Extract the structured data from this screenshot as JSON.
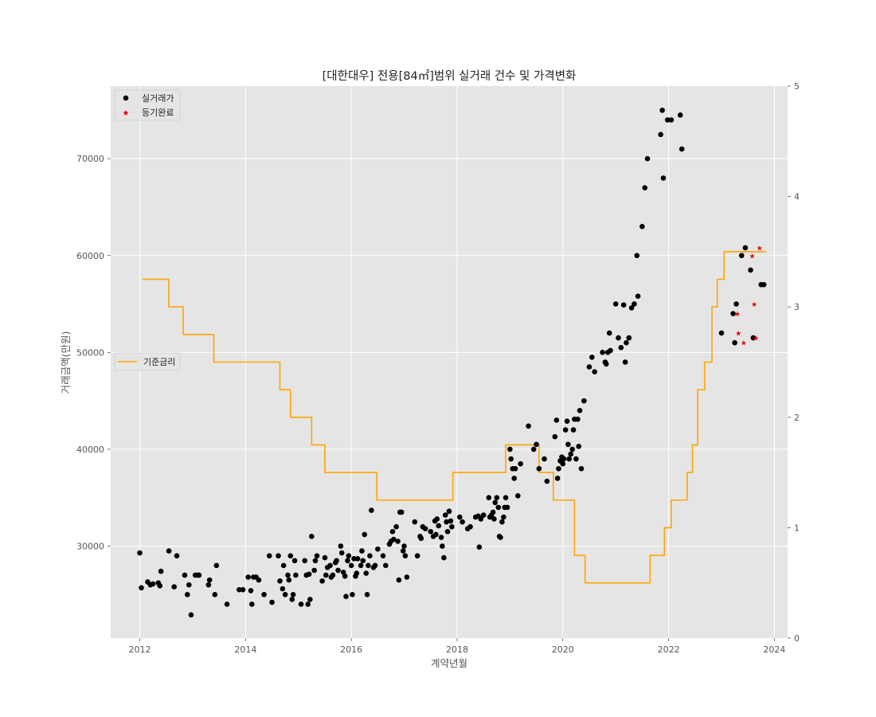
{
  "chart_data": {
    "type": "scatter",
    "title": "[대한대우] 전용[84㎡]범위 실거래 건수 및 가격변화",
    "xlabel": "계약년월",
    "ylabel": "거래금액(만원)",
    "xlim": [
      2011.45,
      2024.25
    ],
    "ylim": [
      20500,
      77500
    ],
    "y2lim": [
      0,
      5
    ],
    "x_ticks": [
      2012,
      2014,
      2016,
      2018,
      2020,
      2022,
      2024
    ],
    "x_tick_labels": [
      "2012",
      "2014",
      "2016",
      "2018",
      "2020",
      "2022",
      "2024"
    ],
    "y_ticks": [
      30000,
      40000,
      50000,
      60000,
      70000
    ],
    "y_tick_labels": [
      "30000",
      "40000",
      "50000",
      "60000",
      "70000"
    ],
    "y2_ticks": [
      0,
      1,
      2,
      3,
      4,
      5
    ],
    "y2_tick_labels": [
      "0",
      "1",
      "2",
      "3",
      "4",
      "5"
    ],
    "grid": true,
    "legend_top": {
      "placement": "upper-left",
      "entries": [
        "실거래가",
        "등기완료"
      ]
    },
    "legend_mid": {
      "placement": "center-left",
      "entries": [
        "기준금리"
      ]
    },
    "colors": {
      "plot_bg": "#e5e5e5",
      "grid": "#ffffff",
      "trade": "#000000",
      "registered": "#e00000",
      "rate": "#ffa500"
    },
    "series": [
      {
        "name": "실거래가",
        "kind": "scatter",
        "color": "#000000",
        "points": [
          [
            2012.0,
            29300
          ],
          [
            2012.03,
            25700
          ],
          [
            2012.15,
            26300
          ],
          [
            2012.2,
            26000
          ],
          [
            2012.25,
            26100
          ],
          [
            2012.35,
            26200
          ],
          [
            2012.38,
            25900
          ],
          [
            2012.4,
            27400
          ],
          [
            2012.55,
            29500
          ],
          [
            2012.65,
            25800
          ],
          [
            2012.7,
            29000
          ],
          [
            2012.85,
            27000
          ],
          [
            2012.9,
            25000
          ],
          [
            2012.93,
            26000
          ],
          [
            2012.97,
            22900
          ],
          [
            2013.05,
            27000
          ],
          [
            2013.1,
            27000
          ],
          [
            2013.12,
            27000
          ],
          [
            2013.3,
            26000
          ],
          [
            2013.32,
            26500
          ],
          [
            2013.42,
            25000
          ],
          [
            2013.45,
            28000
          ],
          [
            2013.65,
            24000
          ],
          [
            2013.88,
            25500
          ],
          [
            2013.95,
            25500
          ],
          [
            2014.05,
            26800
          ],
          [
            2014.1,
            25400
          ],
          [
            2014.12,
            24000
          ],
          [
            2014.15,
            26800
          ],
          [
            2014.2,
            26800
          ],
          [
            2014.25,
            26500
          ],
          [
            2014.35,
            25000
          ],
          [
            2014.45,
            29000
          ],
          [
            2014.5,
            24200
          ],
          [
            2014.62,
            29000
          ],
          [
            2014.65,
            26400
          ],
          [
            2014.7,
            25600
          ],
          [
            2014.72,
            28000
          ],
          [
            2014.75,
            25000
          ],
          [
            2014.8,
            27000
          ],
          [
            2014.82,
            26500
          ],
          [
            2014.85,
            29000
          ],
          [
            2014.88,
            24500
          ],
          [
            2014.9,
            25000
          ],
          [
            2014.93,
            28500
          ],
          [
            2014.95,
            27000
          ],
          [
            2015.05,
            24000
          ],
          [
            2015.12,
            28500
          ],
          [
            2015.15,
            27000
          ],
          [
            2015.18,
            24000
          ],
          [
            2015.2,
            27100
          ],
          [
            2015.22,
            24500
          ],
          [
            2015.25,
            31000
          ],
          [
            2015.3,
            27500
          ],
          [
            2015.32,
            28500
          ],
          [
            2015.35,
            29000
          ],
          [
            2015.45,
            26400
          ],
          [
            2015.5,
            28800
          ],
          [
            2015.52,
            27000
          ],
          [
            2015.55,
            27800
          ],
          [
            2015.6,
            28000
          ],
          [
            2015.62,
            26800
          ],
          [
            2015.65,
            27000
          ],
          [
            2015.7,
            28300
          ],
          [
            2015.72,
            28500
          ],
          [
            2015.75,
            27500
          ],
          [
            2015.8,
            30000
          ],
          [
            2015.82,
            29300
          ],
          [
            2015.85,
            27300
          ],
          [
            2015.88,
            26900
          ],
          [
            2015.9,
            24800
          ],
          [
            2015.93,
            28500
          ],
          [
            2015.95,
            29000
          ],
          [
            2016.0,
            28000
          ],
          [
            2016.02,
            25000
          ],
          [
            2016.05,
            28700
          ],
          [
            2016.08,
            26900
          ],
          [
            2016.1,
            27200
          ],
          [
            2016.12,
            28700
          ],
          [
            2016.18,
            28000
          ],
          [
            2016.2,
            29500
          ],
          [
            2016.22,
            28500
          ],
          [
            2016.25,
            31200
          ],
          [
            2016.28,
            27200
          ],
          [
            2016.3,
            25000
          ],
          [
            2016.32,
            28000
          ],
          [
            2016.35,
            29000
          ],
          [
            2016.38,
            33700
          ],
          [
            2016.42,
            27800
          ],
          [
            2016.45,
            28000
          ],
          [
            2016.5,
            29700
          ],
          [
            2016.6,
            29000
          ],
          [
            2016.65,
            28000
          ],
          [
            2016.72,
            30200
          ],
          [
            2016.75,
            30500
          ],
          [
            2016.78,
            31500
          ],
          [
            2016.8,
            30700
          ],
          [
            2016.85,
            32000
          ],
          [
            2016.88,
            30500
          ],
          [
            2016.9,
            26500
          ],
          [
            2016.92,
            33500
          ],
          [
            2016.95,
            33500
          ],
          [
            2016.98,
            29500
          ],
          [
            2017.0,
            30000
          ],
          [
            2017.02,
            29000
          ],
          [
            2017.05,
            26800
          ],
          [
            2017.2,
            32500
          ],
          [
            2017.25,
            29000
          ],
          [
            2017.3,
            31000
          ],
          [
            2017.32,
            30800
          ],
          [
            2017.35,
            32000
          ],
          [
            2017.4,
            31800
          ],
          [
            2017.5,
            31500
          ],
          [
            2017.55,
            31000
          ],
          [
            2017.58,
            32600
          ],
          [
            2017.6,
            31200
          ],
          [
            2017.62,
            32800
          ],
          [
            2017.65,
            32100
          ],
          [
            2017.7,
            30900
          ],
          [
            2017.72,
            30000
          ],
          [
            2017.75,
            28800
          ],
          [
            2017.78,
            33200
          ],
          [
            2017.8,
            32500
          ],
          [
            2017.82,
            31500
          ],
          [
            2017.85,
            33600
          ],
          [
            2017.88,
            32600
          ],
          [
            2017.9,
            32000
          ],
          [
            2018.05,
            33000
          ],
          [
            2018.1,
            32500
          ],
          [
            2018.2,
            31800
          ],
          [
            2018.25,
            32000
          ],
          [
            2018.35,
            33000
          ],
          [
            2018.4,
            33100
          ],
          [
            2018.42,
            29900
          ],
          [
            2018.45,
            32800
          ],
          [
            2018.5,
            33200
          ],
          [
            2018.6,
            35000
          ],
          [
            2018.62,
            33000
          ],
          [
            2018.65,
            33200
          ],
          [
            2018.68,
            33500
          ],
          [
            2018.7,
            32800
          ],
          [
            2018.72,
            34500
          ],
          [
            2018.75,
            35000
          ],
          [
            2018.78,
            34000
          ],
          [
            2018.8,
            31000
          ],
          [
            2018.82,
            30900
          ],
          [
            2018.85,
            32500
          ],
          [
            2018.88,
            33000
          ],
          [
            2018.9,
            34000
          ],
          [
            2018.92,
            35000
          ],
          [
            2018.95,
            34000
          ],
          [
            2019.0,
            40000
          ],
          [
            2019.02,
            39000
          ],
          [
            2019.05,
            38000
          ],
          [
            2019.08,
            37000
          ],
          [
            2019.1,
            38000
          ],
          [
            2019.15,
            35200
          ],
          [
            2019.2,
            38500
          ],
          [
            2019.35,
            42400
          ],
          [
            2019.45,
            40000
          ],
          [
            2019.5,
            40500
          ],
          [
            2019.55,
            38000
          ],
          [
            2019.65,
            39000
          ],
          [
            2019.7,
            36700
          ],
          [
            2019.85,
            41300
          ],
          [
            2019.88,
            43000
          ],
          [
            2019.9,
            37000
          ],
          [
            2019.92,
            38000
          ],
          [
            2019.95,
            38800
          ],
          [
            2019.98,
            39200
          ],
          [
            2020.0,
            38500
          ],
          [
            2020.02,
            39000
          ],
          [
            2020.05,
            42000
          ],
          [
            2020.08,
            42900
          ],
          [
            2020.1,
            40500
          ],
          [
            2020.12,
            39000
          ],
          [
            2020.15,
            39500
          ],
          [
            2020.18,
            40000
          ],
          [
            2020.2,
            42000
          ],
          [
            2020.22,
            43100
          ],
          [
            2020.25,
            39000
          ],
          [
            2020.28,
            43100
          ],
          [
            2020.3,
            40300
          ],
          [
            2020.32,
            44000
          ],
          [
            2020.35,
            38000
          ],
          [
            2020.4,
            45000
          ],
          [
            2020.5,
            48500
          ],
          [
            2020.55,
            49500
          ],
          [
            2020.6,
            48000
          ],
          [
            2020.75,
            50000
          ],
          [
            2020.8,
            49000
          ],
          [
            2020.82,
            48800
          ],
          [
            2020.85,
            50000
          ],
          [
            2020.88,
            52000
          ],
          [
            2020.9,
            50200
          ],
          [
            2021.0,
            55000
          ],
          [
            2021.05,
            51500
          ],
          [
            2021.1,
            50500
          ],
          [
            2021.15,
            54900
          ],
          [
            2021.18,
            49000
          ],
          [
            2021.2,
            51000
          ],
          [
            2021.25,
            51500
          ],
          [
            2021.3,
            54600
          ],
          [
            2021.35,
            55000
          ],
          [
            2021.4,
            60000
          ],
          [
            2021.42,
            55800
          ],
          [
            2021.5,
            63000
          ],
          [
            2021.55,
            67000
          ],
          [
            2021.6,
            70000
          ],
          [
            2021.85,
            72500
          ],
          [
            2021.88,
            75000
          ],
          [
            2021.9,
            68000
          ],
          [
            2021.98,
            74000
          ],
          [
            2022.05,
            74000
          ],
          [
            2022.22,
            74500
          ],
          [
            2022.25,
            71000
          ],
          [
            2023.0,
            52000
          ],
          [
            2023.22,
            54000
          ],
          [
            2023.25,
            51000
          ],
          [
            2023.28,
            55000
          ],
          [
            2023.38,
            60000
          ],
          [
            2023.45,
            60800
          ],
          [
            2023.55,
            58500
          ],
          [
            2023.6,
            51500
          ],
          [
            2023.75,
            57000
          ],
          [
            2023.8,
            57000
          ]
        ]
      },
      {
        "name": "등기완료",
        "kind": "scatter",
        "color": "#e00000",
        "points": [
          [
            2023.3,
            54000
          ],
          [
            2023.32,
            52000
          ],
          [
            2023.42,
            51000
          ],
          [
            2023.58,
            60000
          ],
          [
            2023.62,
            55000
          ],
          [
            2023.65,
            51500
          ],
          [
            2023.72,
            60800
          ]
        ]
      },
      {
        "name": "기준금리",
        "kind": "step",
        "axis": "right",
        "color": "#ffa500",
        "points": [
          [
            2012.05,
            3.25
          ],
          [
            2012.55,
            3.0
          ],
          [
            2012.82,
            2.75
          ],
          [
            2013.4,
            2.5
          ],
          [
            2014.65,
            2.25
          ],
          [
            2014.85,
            2.0
          ],
          [
            2015.25,
            1.75
          ],
          [
            2015.5,
            1.5
          ],
          [
            2016.48,
            1.25
          ],
          [
            2017.92,
            1.5
          ],
          [
            2018.92,
            1.75
          ],
          [
            2019.55,
            1.5
          ],
          [
            2019.82,
            1.25
          ],
          [
            2020.22,
            0.75
          ],
          [
            2020.42,
            0.5
          ],
          [
            2021.65,
            0.75
          ],
          [
            2021.92,
            1.0
          ],
          [
            2022.05,
            1.25
          ],
          [
            2022.35,
            1.5
          ],
          [
            2022.45,
            1.75
          ],
          [
            2022.55,
            2.25
          ],
          [
            2022.68,
            2.5
          ],
          [
            2022.82,
            3.0
          ],
          [
            2022.92,
            3.25
          ],
          [
            2023.05,
            3.5
          ],
          [
            2023.85,
            3.5
          ]
        ]
      }
    ]
  }
}
